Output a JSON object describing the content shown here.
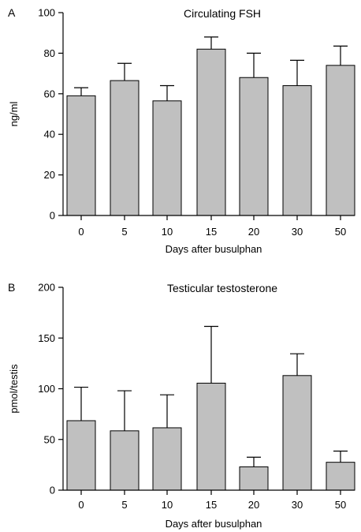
{
  "chart_data": [
    {
      "type": "bar",
      "panel": "A",
      "title": "Circulating FSH",
      "xlabel": "Days after busulphan",
      "ylabel": "ng/ml",
      "ylim": [
        0,
        100
      ],
      "yticks": [
        0,
        20,
        40,
        60,
        80,
        100
      ],
      "categories": [
        "0",
        "5",
        "10",
        "15",
        "20",
        "30",
        "50"
      ],
      "values": [
        59,
        66.5,
        56.5,
        82,
        68,
        64,
        74
      ],
      "errors": [
        4,
        8.5,
        7.5,
        6,
        12,
        12.5,
        9.5
      ],
      "bar_color": "#c0c0c0",
      "grid": false
    },
    {
      "type": "bar",
      "panel": "B",
      "title": "Testicular testosterone",
      "xlabel": "Days after busulphan",
      "ylabel": "pmol/testis",
      "ylim": [
        0,
        200
      ],
      "yticks": [
        0,
        50,
        100,
        150,
        200
      ],
      "categories": [
        "0",
        "5",
        "10",
        "15",
        "20",
        "30",
        "50"
      ],
      "values": [
        68.5,
        58.5,
        61.5,
        105.5,
        23,
        113,
        27.5
      ],
      "errors": [
        33,
        39.5,
        32.5,
        56,
        9.5,
        21.5,
        11
      ],
      "bar_color": "#c0c0c0",
      "grid": false
    }
  ]
}
